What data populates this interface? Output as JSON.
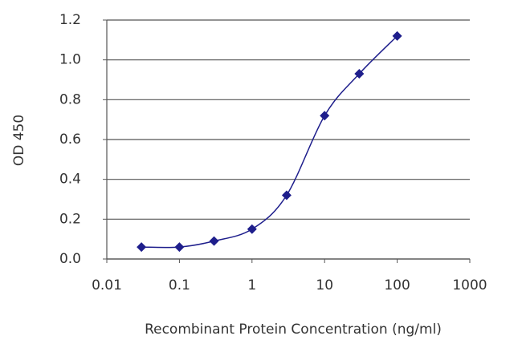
{
  "chart_data": {
    "type": "line",
    "x_label": "Recombinant Protein Concentration (ng/ml)",
    "y_label": "OD 450",
    "x": [
      0.03,
      0.1,
      0.3,
      1,
      3,
      10,
      30,
      100
    ],
    "series": [
      {
        "color": "#1e1e8c",
        "values": [
          0.06,
          0.06,
          0.09,
          0.15,
          0.32,
          0.72,
          0.93,
          1.12
        ]
      }
    ],
    "x_scale": "log",
    "xlim": [
      0.01,
      1000
    ],
    "xticks": [
      0.01,
      0.1,
      1,
      10,
      100,
      1000
    ],
    "ylim": [
      0,
      1.2
    ],
    "yticks": [
      {
        "value": 0,
        "label": "0.0"
      },
      0.2,
      0.4,
      0.6,
      0.8,
      {
        "value": 1,
        "label": "1.0"
      },
      1.2
    ],
    "grid": true
  }
}
